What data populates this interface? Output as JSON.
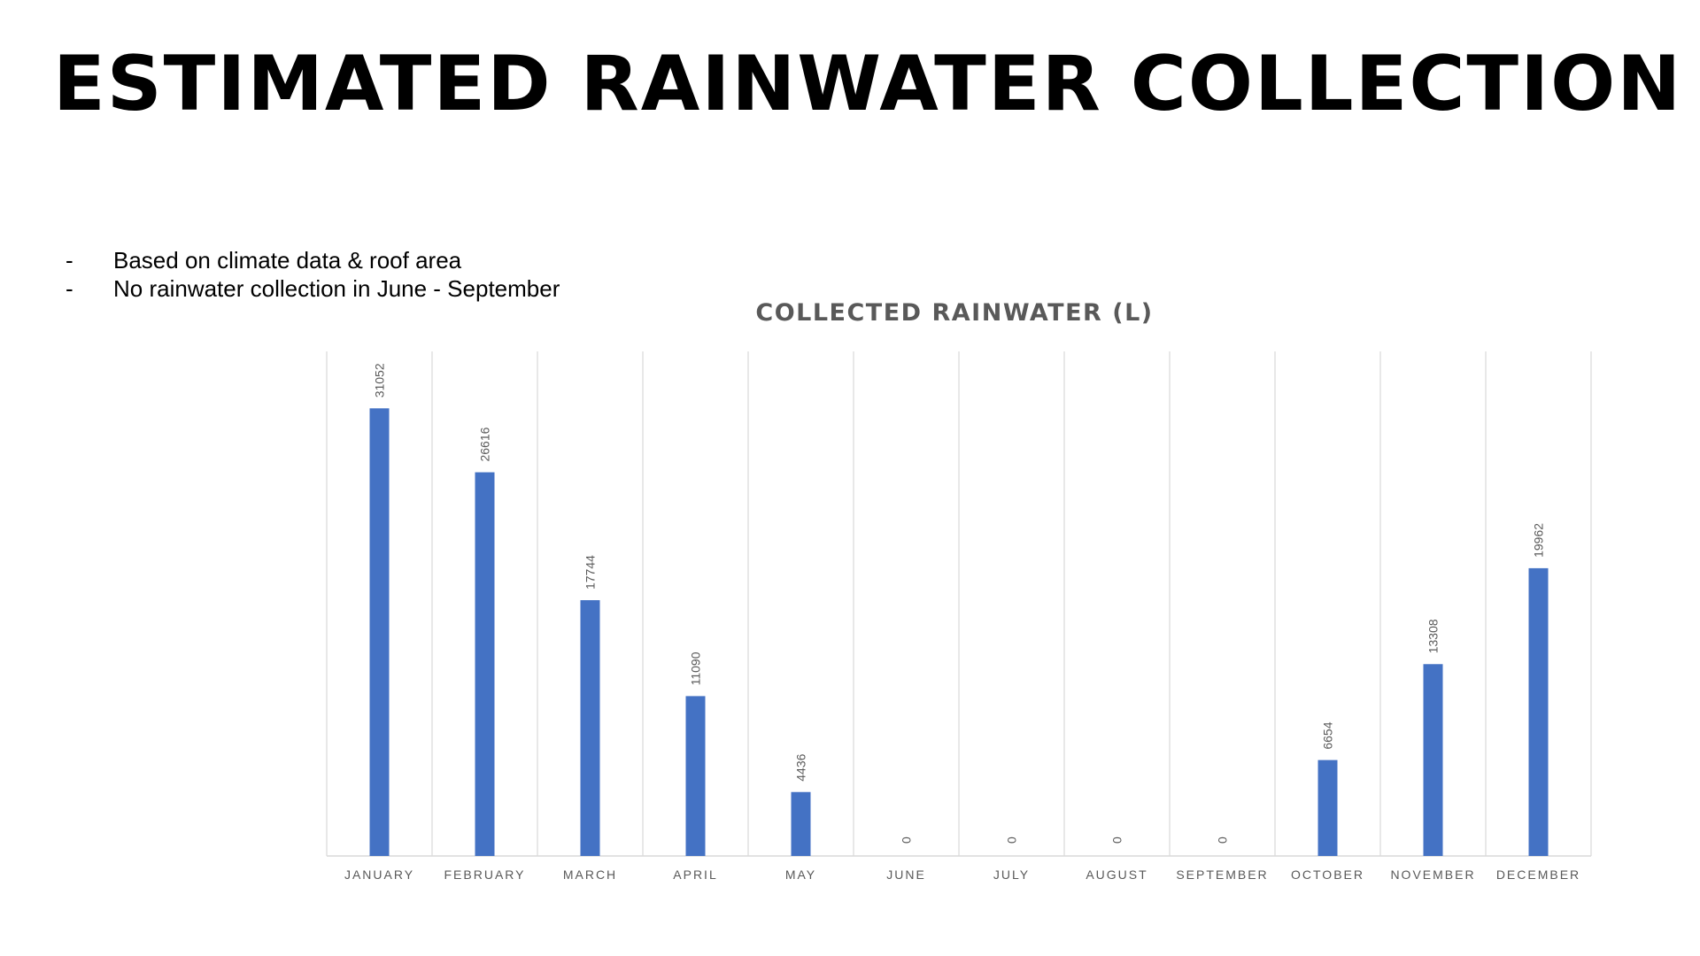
{
  "slide": {
    "title": "ESTIMATED RAINWATER COLLECTION",
    "bullets": [
      "Based on climate data & roof area",
      "No rainwater collection in June - September"
    ],
    "bullet_marker": "-"
  },
  "colors": {
    "bar": "#4472c4",
    "grid": "#d9d9d9",
    "axis_text": "#595959",
    "chart_title": "#595959"
  },
  "chart_data": {
    "type": "bar",
    "title": "COLLECTED RAINWATER (L)",
    "xlabel": "",
    "ylabel": "",
    "ylim": [
      0,
      35000
    ],
    "grid": "vertical category separators",
    "legend": "none",
    "data_labels": "rotated, above bars",
    "categories": [
      "JANUARY",
      "FEBRUARY",
      "MARCH",
      "APRIL",
      "MAY",
      "JUNE",
      "JULY",
      "AUGUST",
      "SEPTEMBER",
      "OCTOBER",
      "NOVEMBER",
      "DECEMBER"
    ],
    "values": [
      31052,
      26616,
      17744,
      11090,
      4436,
      0,
      0,
      0,
      0,
      6654,
      13308,
      19962
    ]
  }
}
